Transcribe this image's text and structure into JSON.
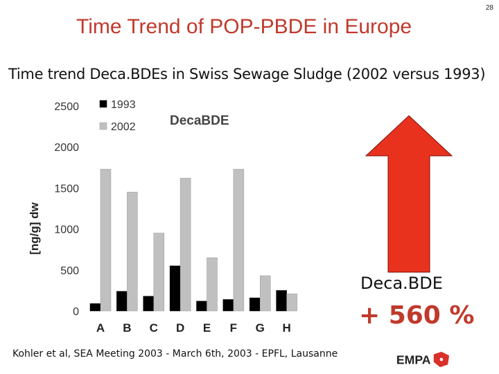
{
  "slide_number": "28",
  "title": "Time Trend of POP-PBDE in Europe",
  "subtitle": "Time trend Deca.BDEs in Swiss Sewage Sludge (2002 versus 1993)",
  "callout": {
    "label": "Deca.BDE",
    "value": "+ 560 %"
  },
  "reference": "Kohler et al, SEA Meeting 2003 - March 6th, 2003 - EPFL, Lausanne",
  "logo": {
    "text": "EMPA"
  },
  "colors": {
    "title": "#c0392b",
    "arrow": "#e8321e",
    "bar_1993": "#000000",
    "bar_2002": "#c0c0c0"
  },
  "icons": {
    "arrow": "up-arrow-icon"
  },
  "chart_data": {
    "type": "bar",
    "title": "DecaBDE",
    "ylabel": "[ng/g] dw",
    "xlabel": "",
    "categories": [
      "A",
      "B",
      "C",
      "D",
      "E",
      "F",
      "G",
      "H"
    ],
    "series": [
      {
        "name": "1993",
        "color": "#000000",
        "values": [
          90,
          240,
          180,
          550,
          120,
          140,
          160,
          250
        ]
      },
      {
        "name": "2002",
        "color": "#c0c0c0",
        "values": [
          1730,
          1450,
          950,
          1620,
          650,
          1730,
          430,
          210
        ]
      }
    ],
    "ylim": [
      0,
      2500
    ],
    "yticks": [
      0,
      500,
      1000,
      1500,
      2000,
      2500
    ],
    "grid": false,
    "legend": "top-left"
  }
}
